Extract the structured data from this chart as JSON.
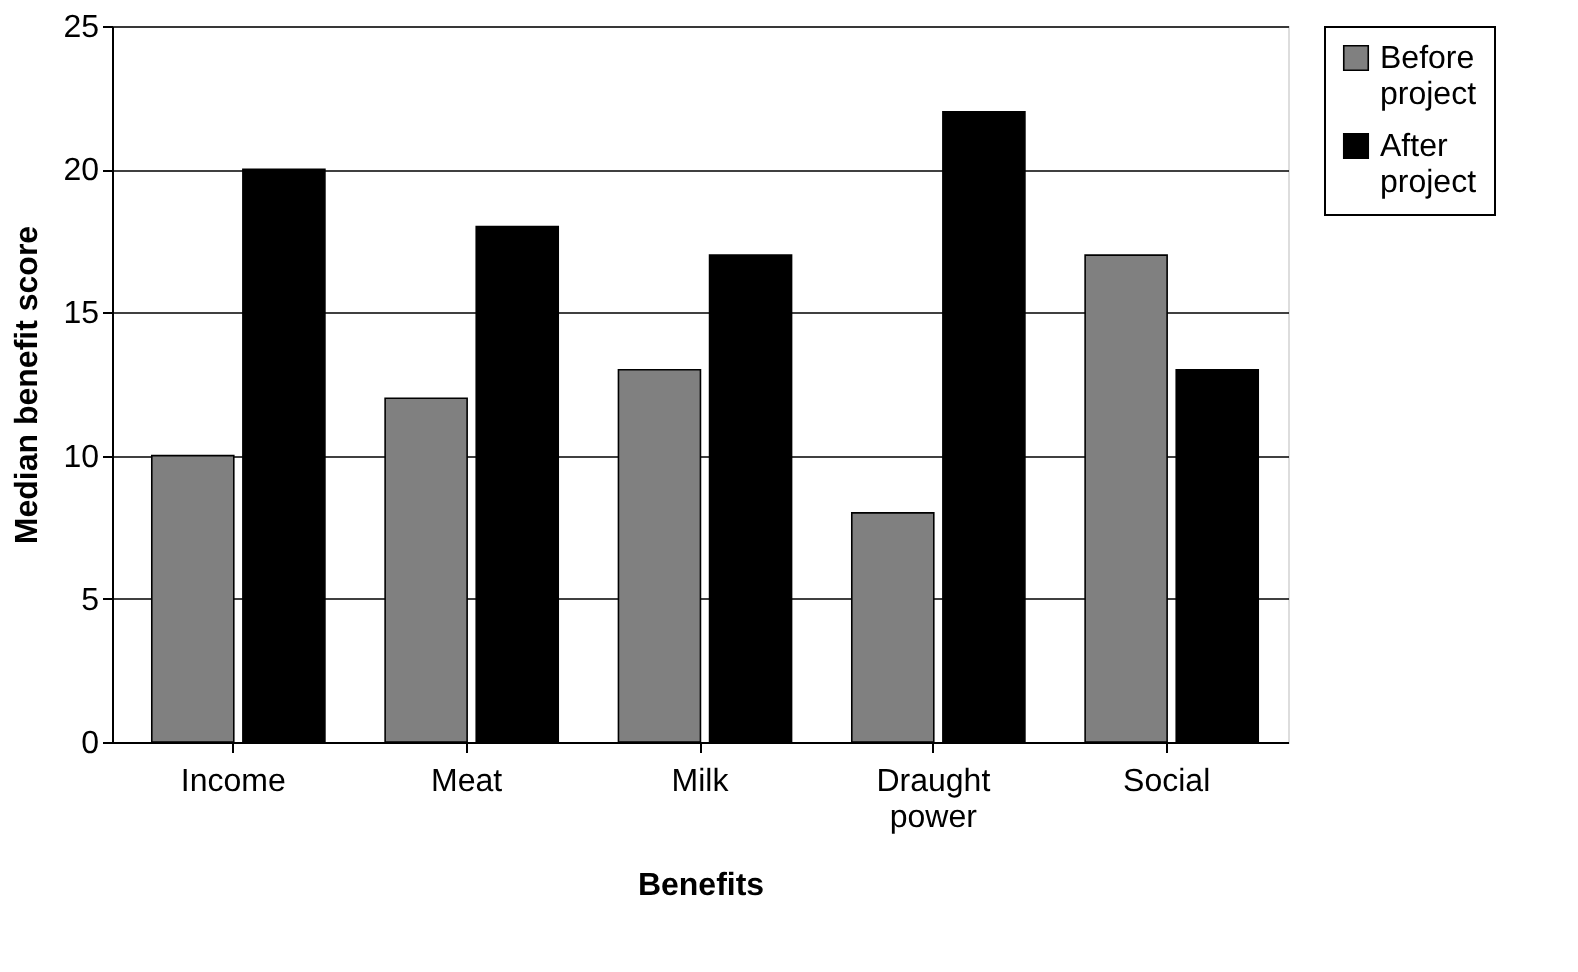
{
  "chart_data": {
    "type": "bar",
    "xlabel": "Benefits",
    "ylabel": "Median benefit score",
    "categories": [
      "Income",
      "Meat",
      "Milk",
      "Draught power",
      "Social"
    ],
    "series": [
      {
        "name": "Before project",
        "color": "#808080",
        "values": [
          10,
          12,
          13,
          8,
          17
        ]
      },
      {
        "name": "After project",
        "color": "#000000",
        "values": [
          20,
          18,
          17,
          22,
          13
        ]
      }
    ],
    "ylim": [
      0,
      25
    ],
    "yticks": [
      0,
      5,
      10,
      15,
      20,
      25
    ],
    "grid": "y",
    "legend": "right"
  }
}
